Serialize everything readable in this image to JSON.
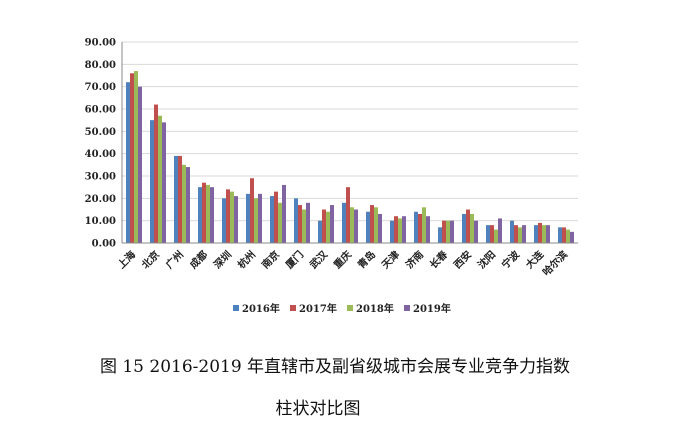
{
  "chart_data": {
    "type": "bar",
    "categories": [
      "上海",
      "北京",
      "广州",
      "成都",
      "深圳",
      "杭州",
      "南京",
      "厦门",
      "武汉",
      "重庆",
      "青岛",
      "天津",
      "济南",
      "长春",
      "西安",
      "沈阳",
      "宁波",
      "大连",
      "哈尔滨"
    ],
    "series": [
      {
        "name": "2016年",
        "color": "#4f81bd",
        "values": [
          72,
          55,
          39,
          25,
          20,
          22,
          21,
          20,
          10,
          18,
          14,
          10,
          14,
          7,
          13,
          8,
          10,
          8,
          7
        ]
      },
      {
        "name": "2017年",
        "color": "#c0504d",
        "values": [
          76,
          62,
          39,
          27,
          24,
          29,
          23,
          17,
          15,
          25,
          17,
          12,
          13,
          10,
          15,
          8,
          8,
          9,
          7
        ]
      },
      {
        "name": "2018年",
        "color": "#9bbb59",
        "values": [
          77,
          57,
          35,
          26,
          23,
          20,
          18,
          15,
          14,
          16,
          16,
          11,
          16,
          10,
          13,
          6,
          7,
          8,
          6
        ]
      },
      {
        "name": "2019年",
        "color": "#8064a2",
        "values": [
          70,
          54,
          34,
          25,
          21,
          22,
          26,
          18,
          17,
          15,
          13,
          12,
          12,
          10,
          10,
          11,
          8,
          8,
          5
        ]
      }
    ],
    "ylim": [
      0,
      90
    ],
    "yticks": [
      {
        "value": 0,
        "label": "0.00"
      },
      {
        "value": 10,
        "label": "10.00"
      },
      {
        "value": 20,
        "label": "20.00"
      },
      {
        "value": 30,
        "label": "30.00"
      },
      {
        "value": 40,
        "label": "40.00"
      },
      {
        "value": 50,
        "label": "50.00"
      },
      {
        "value": 60,
        "label": "60.00"
      },
      {
        "value": 70,
        "label": "70.00"
      },
      {
        "value": 80,
        "label": "80.00"
      },
      {
        "value": 90,
        "label": "90.00"
      }
    ],
    "grid": true,
    "caption": [
      "图 15   2016-2019 年直辖市及副省级城市会展专业竞争力指数",
      "柱状对比图"
    ]
  }
}
